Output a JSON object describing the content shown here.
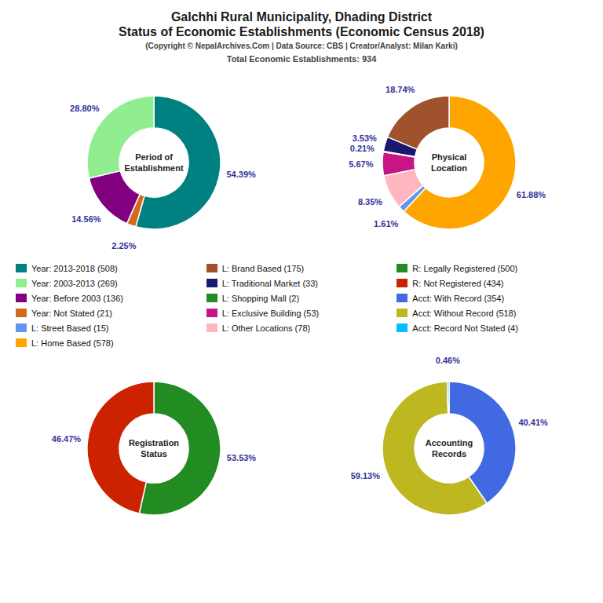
{
  "title": "Galchhi Rural Municipality, Dhading District\nStatus of Economic Establishments (Economic Census 2018)",
  "subtitle": [
    "(Copyright © NepalArchives.Com | Data Source: CBS | Creator/Analyst: Milan Karki)",
    "Total Economic Establishments: 934"
  ],
  "legend_items": [
    {
      "label": "Year: 2013-2018 (508)",
      "color": "#008080"
    },
    {
      "label": "Year: 2003-2013 (269)",
      "color": "#90ee90"
    },
    {
      "label": "Year: Before 2003 (136)",
      "color": "#800080"
    },
    {
      "label": "Year: Not Stated (21)",
      "color": "#d2691e"
    },
    {
      "label": "L: Street Based (15)",
      "color": "#6495ED"
    },
    {
      "label": "L: Home Based (578)",
      "color": "#FFA500"
    },
    {
      "label": "L: Brand Based (175)",
      "color": "#A0522D"
    },
    {
      "label": "L: Traditional Market (33)",
      "color": "#191970"
    },
    {
      "label": "L: Shopping Mall (2)",
      "color": "#228B22"
    },
    {
      "label": "L: Exclusive Building (53)",
      "color": "#C71585"
    },
    {
      "label": "L: Other Locations (78)",
      "color": "#FFB6C1"
    },
    {
      "label": "R: Legally Registered (500)",
      "color": "#228B22"
    },
    {
      "label": "R: Not Registered (434)",
      "color": "#cc2200"
    },
    {
      "label": "Acct: With Record (354)",
      "color": "#4169E1"
    },
    {
      "label": "Acct: Without Record (518)",
      "color": "#BDB820"
    },
    {
      "label": "Acct: Record Not Stated (4)",
      "color": "#00BFFF"
    }
  ],
  "chart_data": [
    {
      "type": "pie",
      "title": "Period of\nEstablishment",
      "values": [
        54.39,
        2.25,
        14.56,
        28.8
      ],
      "value_labels": [
        "54.39%",
        "2.25%",
        "14.56%",
        "28.80%"
      ],
      "colors": [
        "#008080",
        "#d2691e",
        "#800080",
        "#90ee90"
      ],
      "data_labels": true
    },
    {
      "type": "pie",
      "title": "Physical\nLocation",
      "values": [
        61.88,
        1.61,
        8.35,
        5.67,
        0.21,
        3.53,
        18.74
      ],
      "value_labels": [
        "61.88%",
        "1.61%",
        "8.35%",
        "5.67%",
        "0.21%",
        "3.53%",
        "18.74%"
      ],
      "colors": [
        "#FFA500",
        "#6495ED",
        "#FFB6C1",
        "#C71585",
        "#228B22",
        "#191970",
        "#A0522D"
      ],
      "data_labels": true
    },
    {
      "type": "pie",
      "title": "Registration\nStatus",
      "values": [
        53.53,
        46.47
      ],
      "value_labels": [
        "53.53%",
        "46.47%"
      ],
      "colors": [
        "#228B22",
        "#cc2200"
      ],
      "data_labels": true
    },
    {
      "type": "pie",
      "title": "Accounting\nRecords",
      "values": [
        40.41,
        59.13,
        0.46
      ],
      "value_labels": [
        "40.41%",
        "59.13%",
        "0.46%"
      ],
      "colors": [
        "#4169E1",
        "#BDB820",
        "#00BFFF"
      ],
      "data_labels": true
    }
  ]
}
